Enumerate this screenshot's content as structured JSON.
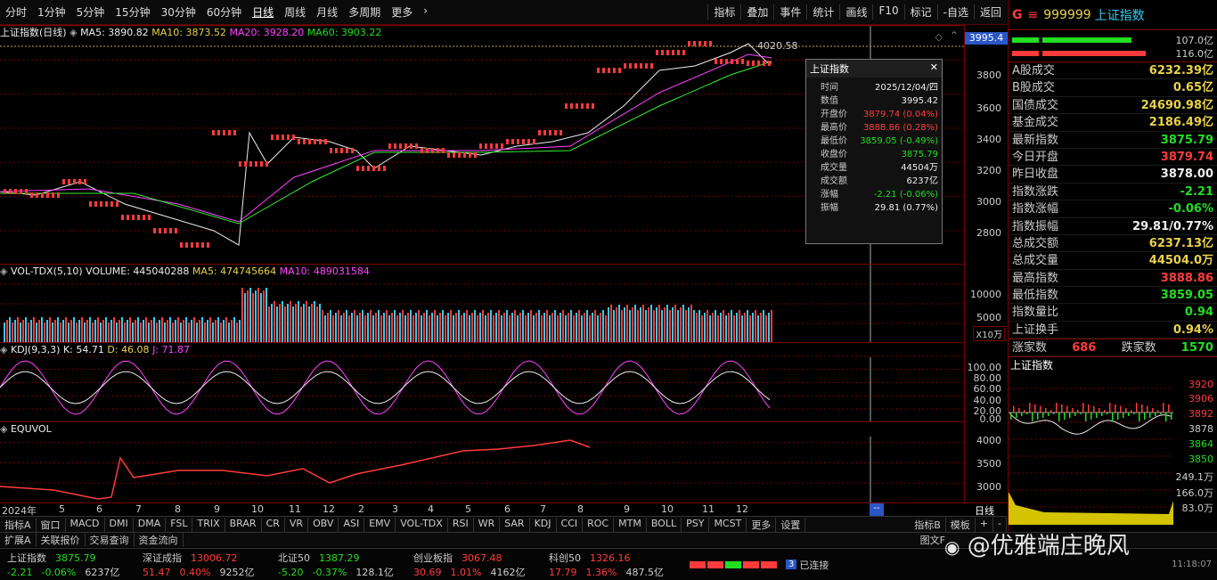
{
  "toolbar": {
    "tabs": [
      "分时",
      "1分钟",
      "5分钟",
      "15分钟",
      "30分钟",
      "60分钟",
      "日线",
      "周线",
      "月线",
      "多周期",
      "更多"
    ],
    "active": "日线",
    "right": [
      "指标",
      "叠加",
      "事件",
      "统计",
      "画线",
      "F10",
      "标记",
      "-自选",
      "返回"
    ]
  },
  "header": {
    "code": "999999",
    "name": "上证指数",
    "market_badge": "G"
  },
  "main_pane": {
    "title": "上证指数(日线)",
    "ma5": "MA5: 3890.82",
    "ma10": "MA10: 3873.52",
    "ma20": "MA20: 3928.20",
    "ma60": "MA60: 3903.22",
    "price_tag": "3995.4",
    "peak_label": "4020.58",
    "ticks": [
      "3800",
      "3600",
      "3400",
      "3200",
      "3000",
      "2800"
    ]
  },
  "vol_pane": {
    "title": "VOL-TDX(5,10)",
    "volume": "VOLUME: 445040288",
    "ma5": "MA5: 474745664",
    "ma10": "MA10: 489031584",
    "ticks": [
      "10000",
      "5000"
    ],
    "unit": "X10万"
  },
  "kdj_pane": {
    "title": "KDJ(9,3,3)",
    "k": "K: 54.71",
    "d": "D: 46.08",
    "j": "J: 71.87",
    "ticks": [
      "100.00",
      "80.00",
      "60.00",
      "40.00",
      "20.00",
      "0.00"
    ]
  },
  "equvol_pane": {
    "title": "EQUVOL",
    "ticks": [
      "4000",
      "3500",
      "3000"
    ]
  },
  "x_axis": {
    "labels": [
      "2024年",
      "5",
      "6",
      "7",
      "8",
      "9",
      "10",
      "11",
      "12",
      "2",
      "3",
      "4",
      "5",
      "6",
      "7",
      "8",
      "9",
      "10",
      "11",
      "12"
    ],
    "corner": "日线",
    "marker": "--"
  },
  "tooltip": {
    "title": "上证指数",
    "rows": [
      {
        "k": "时间",
        "v": "2025/12/04/四",
        "c": "white"
      },
      {
        "k": "数值",
        "v": "3995.42",
        "c": "white"
      },
      {
        "k": "开盘价",
        "v": "3879.74 (0.04%)",
        "c": "red"
      },
      {
        "k": "最高价",
        "v": "3888.86 (0.28%)",
        "c": "red"
      },
      {
        "k": "最低价",
        "v": "3859.05 (-0.49%)",
        "c": "green"
      },
      {
        "k": "收盘价",
        "v": "3875.79",
        "c": "green"
      },
      {
        "k": "成交量",
        "v": "44504万",
        "c": "white"
      },
      {
        "k": "成交额",
        "v": "6237亿",
        "c": "white"
      },
      {
        "k": "涨幅",
        "v": "-2.21 (-0.06%)",
        "c": "green"
      },
      {
        "k": "振幅",
        "v": "29.81 (0.77%)",
        "c": "white"
      }
    ]
  },
  "right_panel": {
    "bars": [
      {
        "v": "107.0亿",
        "c": "#22dd22"
      },
      {
        "v": "116.0亿",
        "c": "#ff3b3b"
      }
    ],
    "stats": [
      {
        "k": "A股成交",
        "v": "6232.39亿",
        "c": "yellow"
      },
      {
        "k": "B股成交",
        "v": "0.65亿",
        "c": "yellow"
      },
      {
        "k": "国债成交",
        "v": "24690.98亿",
        "c": "yellow"
      },
      {
        "k": "基金成交",
        "v": "2186.49亿",
        "c": "yellow"
      },
      {
        "k": "最新指数",
        "v": "3875.79",
        "c": "green"
      },
      {
        "k": "今日开盘",
        "v": "3879.74",
        "c": "red"
      },
      {
        "k": "昨日收盘",
        "v": "3878.00",
        "c": "white"
      },
      {
        "k": "指数涨跌",
        "v": "-2.21",
        "c": "green"
      },
      {
        "k": "指数涨幅",
        "v": "-0.06%",
        "c": "green"
      },
      {
        "k": "指数振幅",
        "v": "29.81/0.77%",
        "c": "white"
      },
      {
        "k": "总成交额",
        "v": "6237.13亿",
        "c": "yellow"
      },
      {
        "k": "总成交量",
        "v": "44504.0万",
        "c": "yellow"
      },
      {
        "k": "最高指数",
        "v": "3888.86",
        "c": "red"
      },
      {
        "k": "最低指数",
        "v": "3859.05",
        "c": "green"
      },
      {
        "k": "指数量比",
        "v": "0.94",
        "c": "green"
      },
      {
        "k": "上证换手",
        "v": "0.94%",
        "c": "yellow"
      }
    ],
    "up_label": "涨家数",
    "up": "686",
    "down_label": "跌家数",
    "down": "1570",
    "mini_title": "上证指数",
    "mini_ticks": [
      "3920",
      "3906",
      "3892",
      "3878",
      "3864",
      "3850",
      "249.1万",
      "166.0万",
      "83.0万"
    ]
  },
  "indicator_tabs": [
    "指标A",
    "窗口",
    "MACD",
    "DMI",
    "DMA",
    "FSL",
    "TRIX",
    "BRAR",
    "CR",
    "VR",
    "OBV",
    "ASI",
    "EMV",
    "VOL-TDX",
    "RSI",
    "WR",
    "SAR",
    "KDJ",
    "CCI",
    "ROC",
    "MTM",
    "BOLL",
    "PSY",
    "MCST",
    "更多",
    "设置"
  ],
  "indicator_right": [
    "指标B",
    "模板",
    "+",
    "-"
  ],
  "bottom_tabs": [
    "扩展A",
    "关联报价",
    "交易查询",
    "资金流向"
  ],
  "bottom_right": "图文F",
  "tickers": [
    {
      "name": "上证指数",
      "price": "3875.79",
      "chg": "-2.21",
      "pct": "-0.06%",
      "amt": "6237亿",
      "dir": "down"
    },
    {
      "name": "深证成指",
      "price": "13006.72",
      "chg": "51.47",
      "pct": "0.40%",
      "amt": "9252亿",
      "dir": "up"
    },
    {
      "name": "北证50",
      "price": "1387.29",
      "chg": "-5.20",
      "pct": "-0.37%",
      "amt": "128.1亿",
      "dir": "down"
    },
    {
      "name": "创业板指",
      "price": "3067.48",
      "chg": "30.69",
      "pct": "1.01%",
      "amt": "4162亿",
      "dir": "up"
    },
    {
      "name": "科创50",
      "price": "1326.16",
      "chg": "17.79",
      "pct": "1.36%",
      "amt": "487.5亿",
      "dir": "up"
    }
  ],
  "connection": {
    "badge": "3",
    "text": "已连接"
  },
  "watermark": "@优雅端庄晚风",
  "time": "11:18:07",
  "colors": {
    "up": "#ff3b3b",
    "down": "#22dd22",
    "ma5": "#ffffff",
    "ma10": "#ffee44",
    "ma20": "#ff44ff",
    "ma60": "#33ee33",
    "grid": "#7a0000"
  }
}
